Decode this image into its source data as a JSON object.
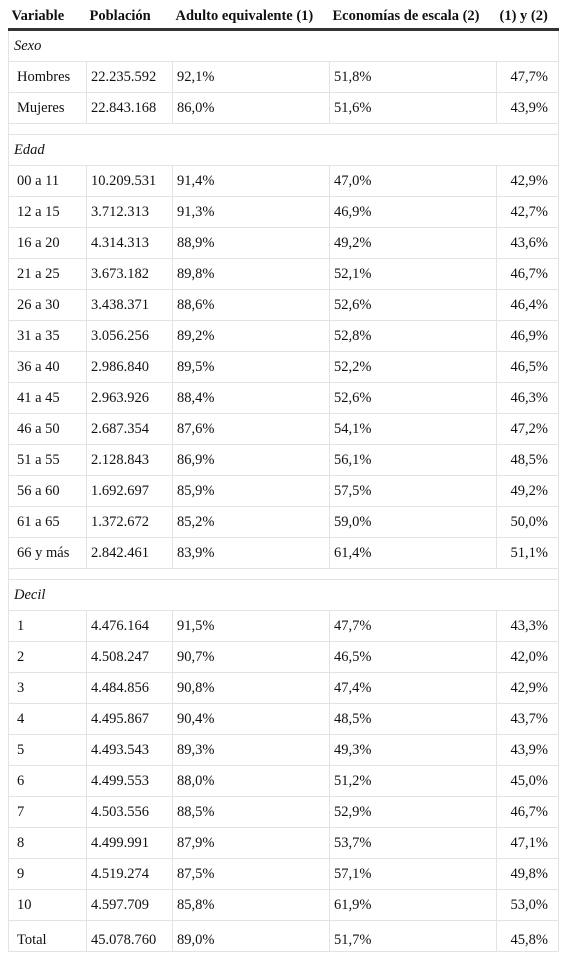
{
  "headers": [
    "Variable",
    "Población",
    "Adulto equivalente (1)",
    "Economías de escala (2)",
    "(1) y (2)"
  ],
  "sections": [
    {
      "title": "Sexo",
      "rows": [
        [
          "Hombres",
          "22.235.592",
          "92,1%",
          "51,8%",
          "47,7%"
        ],
        [
          "Mujeres",
          "22.843.168",
          "86,0%",
          "51,6%",
          "43,9%"
        ]
      ]
    },
    {
      "title": "Edad",
      "rows": [
        [
          "00 a 11",
          "10.209.531",
          "91,4%",
          "47,0%",
          "42,9%"
        ],
        [
          "12 a 15",
          "3.712.313",
          "91,3%",
          "46,9%",
          "42,7%"
        ],
        [
          "16 a 20",
          "4.314.313",
          "88,9%",
          "49,2%",
          "43,6%"
        ],
        [
          "21 a 25",
          "3.673.182",
          "89,8%",
          "52,1%",
          "46,7%"
        ],
        [
          "26 a 30",
          "3.438.371",
          "88,6%",
          "52,6%",
          "46,4%"
        ],
        [
          "31 a 35",
          "3.056.256",
          "89,2%",
          "52,8%",
          "46,9%"
        ],
        [
          "36 a 40",
          "2.986.840",
          "89,5%",
          "52,2%",
          "46,5%"
        ],
        [
          "41 a 45",
          "2.963.926",
          "88,4%",
          "52,6%",
          "46,3%"
        ],
        [
          "46 a 50",
          "2.687.354",
          "87,6%",
          "54,1%",
          "47,2%"
        ],
        [
          "51 a 55",
          "2.128.843",
          "86,9%",
          "56,1%",
          "48,5%"
        ],
        [
          "56 a 60",
          "1.692.697",
          "85,9%",
          "57,5%",
          "49,2%"
        ],
        [
          "61 a 65",
          "1.372.672",
          "85,2%",
          "59,0%",
          "50,0%"
        ],
        [
          "66 y más",
          "2.842.461",
          "83,9%",
          "61,4%",
          "51,1%"
        ]
      ]
    },
    {
      "title": "Decil",
      "rows": [
        [
          "1",
          "4.476.164",
          "91,5%",
          "47,7%",
          "43,3%"
        ],
        [
          "2",
          "4.508.247",
          "90,7%",
          "46,5%",
          "42,0%"
        ],
        [
          "3",
          "4.484.856",
          "90,8%",
          "47,4%",
          "42,9%"
        ],
        [
          "4",
          "4.495.867",
          "90,4%",
          "48,5%",
          "43,7%"
        ],
        [
          "5",
          "4.493.543",
          "89,3%",
          "49,3%",
          "43,9%"
        ],
        [
          "6",
          "4.499.553",
          "88,0%",
          "51,2%",
          "45,0%"
        ],
        [
          "7",
          "4.503.556",
          "88,5%",
          "52,9%",
          "46,7%"
        ],
        [
          "8",
          "4.499.991",
          "87,9%",
          "53,7%",
          "47,1%"
        ],
        [
          "9",
          "4.519.274",
          "87,5%",
          "57,1%",
          "49,8%"
        ],
        [
          "10",
          "4.597.709",
          "85,8%",
          "61,9%",
          "53,0%"
        ]
      ]
    }
  ],
  "total": [
    "Total",
    "45.078.760",
    "89,0%",
    "51,7%",
    "45,8%"
  ]
}
